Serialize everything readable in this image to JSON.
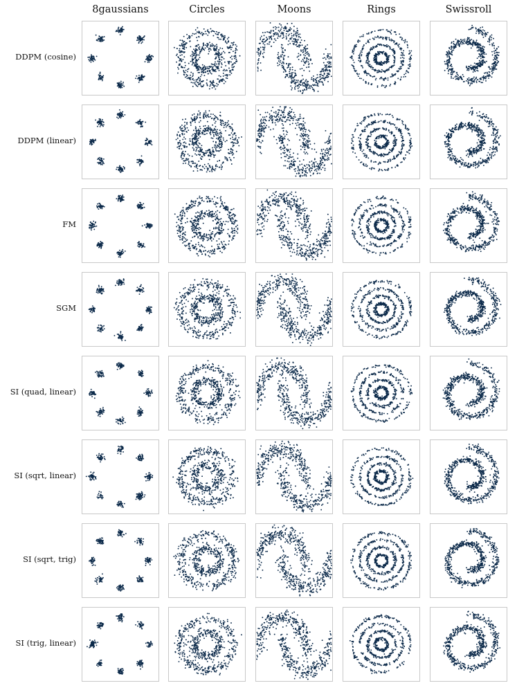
{
  "chart_data": {
    "type": "scatter",
    "title": "",
    "xlabel": "",
    "ylabel": "",
    "grid": false,
    "marker_color": "#0c2a4a",
    "columns": [
      "8gaussians",
      "Circles",
      "Moons",
      "Rings",
      "Swissroll"
    ],
    "rows": [
      "DDPM (cosine)",
      "DDPM (linear)",
      "FM",
      "SGM",
      "SI (quad, linear)",
      "SI (sqrt, linear)",
      "SI (sqrt, trig)",
      "SI (trig, linear)"
    ],
    "datasets": {
      "8gaussians": {
        "description_values": "eight Gaussian clusters on a circle",
        "centers": [
          [
            0,
            1
          ],
          [
            0.707,
            0.707
          ],
          [
            1,
            0
          ],
          [
            0.707,
            -0.707
          ],
          [
            0,
            -1
          ],
          [
            -0.707,
            -0.707
          ],
          [
            -1,
            0
          ],
          [
            -0.707,
            0.707
          ]
        ],
        "radius": 1,
        "cluster_std": 0.06
      },
      "Circles": {
        "radii": [
          0.45,
          0.95
        ],
        "noise": 0.09
      },
      "Moons": {
        "noise": 0.1
      },
      "Rings": {
        "radii": [
          0.2,
          0.45,
          0.7,
          0.95
        ],
        "noise": 0.025
      },
      "Swissroll": {
        "t_range": [
          1.5,
          4.5
        ],
        "noise": 0.06
      }
    }
  }
}
